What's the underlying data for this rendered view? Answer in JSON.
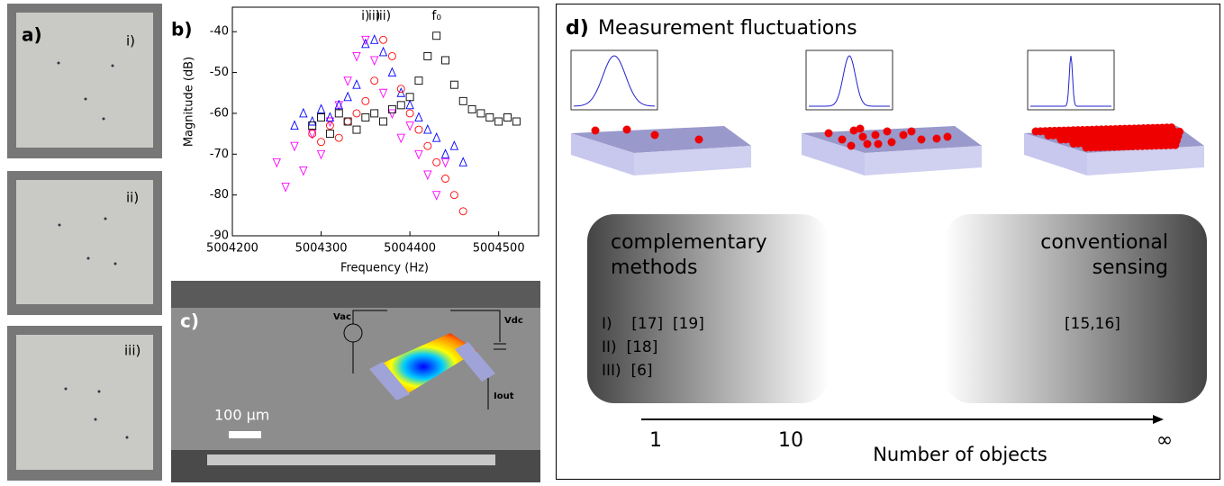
{
  "panel_a": {
    "label": "a)",
    "images": [
      "i)",
      "ii)",
      "iii)"
    ]
  },
  "chart_data": {
    "type": "scatter",
    "panel_label": "b)",
    "x_label": "Frequency (Hz)",
    "y_label": "Magnitude (dB)",
    "xlim": [
      5004200,
      5004545
    ],
    "ylim": [
      -90,
      -34
    ],
    "xticks": [
      5004200,
      5004300,
      5004400,
      5004500
    ],
    "yticks": [
      -90,
      -80,
      -70,
      -60,
      -50,
      -40
    ],
    "series": [
      {
        "name": "i)",
        "color": "#ff00ff",
        "marker": "triangle-down",
        "x": [
          5004250,
          5004260,
          5004270,
          5004280,
          5004290,
          5004300,
          5004310,
          5004320,
          5004330,
          5004340,
          5004350,
          5004360,
          5004370,
          5004380,
          5004390,
          5004400,
          5004410,
          5004420,
          5004430,
          5004440
        ],
        "values": [
          -72,
          -78,
          -68,
          -74,
          -65,
          -70,
          -62,
          -58,
          -52,
          -46,
          -42,
          -47,
          -55,
          -60,
          -66,
          -63,
          -70,
          -75,
          -80,
          -72
        ]
      },
      {
        "name": "ii)",
        "color": "#0000ff",
        "marker": "triangle-up",
        "x": [
          5004270,
          5004280,
          5004290,
          5004300,
          5004310,
          5004320,
          5004330,
          5004340,
          5004350,
          5004360,
          5004370,
          5004380,
          5004390,
          5004400,
          5004410,
          5004420,
          5004430,
          5004440,
          5004450,
          5004460
        ],
        "values": [
          -63,
          -60,
          -62,
          -59,
          -61,
          -58,
          -56,
          -53,
          -43,
          -42,
          -45,
          -50,
          -55,
          -58,
          -61,
          -64,
          -66,
          -70,
          -68,
          -72
        ]
      },
      {
        "name": "iii)",
        "color": "#ff0000",
        "marker": "circle",
        "x": [
          5004290,
          5004300,
          5004310,
          5004320,
          5004330,
          5004340,
          5004350,
          5004360,
          5004370,
          5004380,
          5004390,
          5004400,
          5004410,
          5004420,
          5004430,
          5004440,
          5004450,
          5004460
        ],
        "values": [
          -65,
          -67,
          -63,
          -66,
          -62,
          -60,
          -57,
          -52,
          -42,
          -46,
          -54,
          -60,
          -64,
          -68,
          -72,
          -76,
          -80,
          -84
        ]
      },
      {
        "name": "f₀",
        "color": "#000000",
        "marker": "square",
        "x": [
          5004290,
          5004300,
          5004310,
          5004320,
          5004330,
          5004340,
          5004350,
          5004360,
          5004370,
          5004380,
          5004390,
          5004400,
          5004410,
          5004420,
          5004430,
          5004440,
          5004450,
          5004460,
          5004470,
          5004480,
          5004490,
          5004500,
          5004510,
          5004520
        ],
        "values": [
          -63,
          -61,
          -65,
          -60,
          -62,
          -64,
          -61,
          -60,
          -62,
          -59,
          -58,
          -56,
          -52,
          -46,
          -41,
          -47,
          -53,
          -57,
          -59,
          -60,
          -61,
          -62,
          -61,
          -62
        ]
      }
    ]
  },
  "panel_c": {
    "label": "c)",
    "scale_bar": "100 µm",
    "vac": "Vac",
    "vdc": "Vdc",
    "iout": "Iout"
  },
  "panel_d": {
    "label": "d)",
    "title": "Measurement fluctuations",
    "left_box": {
      "lines": [
        "complementary",
        "methods"
      ],
      "refs": [
        "I)    [17]  [19]",
        "II)  [18]",
        "III)  [6]"
      ]
    },
    "right_box": {
      "lines": [
        "conventional",
        "sensing"
      ],
      "refs": [
        "[15,16]"
      ]
    },
    "axis": {
      "ticks": [
        "1",
        "10",
        "∞"
      ],
      "label": "Number of objects"
    }
  }
}
